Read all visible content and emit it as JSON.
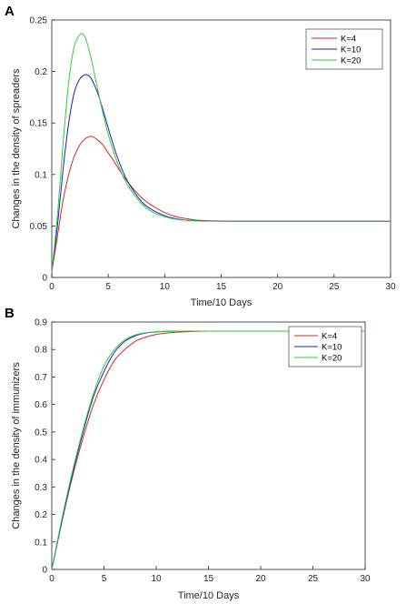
{
  "chart_data": [
    {
      "panel_label": "A",
      "type": "line",
      "title": "",
      "xlabel": "Time/10 Days",
      "ylabel": "Changes in the density of spreaders",
      "xlim": [
        0,
        30
      ],
      "ylim": [
        0,
        0.25
      ],
      "xticks": [
        0,
        5,
        10,
        15,
        20,
        25,
        30
      ],
      "yticks": [
        0,
        0.05,
        0.1,
        0.15,
        0.2,
        0.25
      ],
      "legend_position": "top-right",
      "grid": false,
      "series": [
        {
          "name": "K=4",
          "color": "#d62728",
          "x": [
            0,
            0.5,
            1,
            1.5,
            2,
            2.5,
            3,
            3.5,
            4,
            4.5,
            5,
            5.5,
            6,
            6.5,
            7,
            8,
            9,
            10,
            11,
            12,
            13,
            14,
            15,
            17,
            20,
            25,
            30
          ],
          "y": [
            0.005,
            0.04,
            0.075,
            0.1,
            0.118,
            0.129,
            0.135,
            0.137,
            0.134,
            0.129,
            0.121,
            0.113,
            0.104,
            0.096,
            0.089,
            0.077,
            0.069,
            0.063,
            0.059,
            0.057,
            0.0555,
            0.055,
            0.0548,
            0.0545,
            0.0545,
            0.0545,
            0.0545
          ]
        },
        {
          "name": "K=10",
          "color": "#1f1fbf",
          "x": [
            0,
            0.5,
            1,
            1.5,
            2,
            2.5,
            3,
            3.25,
            3.5,
            4,
            4.5,
            5,
            5.5,
            6,
            6.5,
            7,
            8,
            9,
            10,
            11,
            12,
            13,
            14,
            15,
            17,
            20,
            25,
            30
          ],
          "y": [
            0.005,
            0.05,
            0.105,
            0.15,
            0.18,
            0.193,
            0.197,
            0.196,
            0.193,
            0.181,
            0.164,
            0.145,
            0.127,
            0.111,
            0.098,
            0.088,
            0.073,
            0.065,
            0.06,
            0.057,
            0.0555,
            0.055,
            0.0548,
            0.0546,
            0.0545,
            0.0545,
            0.0545,
            0.0545
          ]
        },
        {
          "name": "K=20",
          "color": "#2ecc40",
          "x": [
            0,
            0.5,
            1,
            1.5,
            2,
            2.5,
            2.75,
            3,
            3.5,
            4,
            4.5,
            5,
            5.5,
            6,
            6.5,
            7,
            8,
            9,
            10,
            11,
            12,
            13,
            14,
            15,
            17,
            20,
            25,
            30
          ],
          "y": [
            0.005,
            0.06,
            0.13,
            0.19,
            0.225,
            0.236,
            0.236,
            0.232,
            0.212,
            0.186,
            0.161,
            0.139,
            0.121,
            0.106,
            0.094,
            0.085,
            0.071,
            0.063,
            0.059,
            0.0565,
            0.0553,
            0.0548,
            0.0546,
            0.0545,
            0.0545,
            0.0545,
            0.0545,
            0.0545
          ]
        }
      ]
    },
    {
      "panel_label": "B",
      "type": "line",
      "title": "",
      "xlabel": "Time/10 Days",
      "ylabel": "Changes in the density of immunizers",
      "xlim": [
        0,
        30
      ],
      "ylim": [
        0,
        0.9
      ],
      "xticks": [
        0,
        5,
        10,
        15,
        20,
        25,
        30
      ],
      "yticks": [
        0,
        0.1,
        0.2,
        0.3,
        0.4,
        0.5,
        0.6,
        0.7,
        0.8,
        0.9
      ],
      "legend_position": "top-right",
      "grid": false,
      "series": [
        {
          "name": "K=4",
          "color": "#d62728",
          "x": [
            0,
            1,
            2,
            3,
            4,
            5,
            6,
            7,
            8,
            9,
            10,
            11,
            12,
            13,
            14,
            15,
            17,
            20,
            25,
            30
          ],
          "y": [
            0,
            0.18,
            0.34,
            0.48,
            0.6,
            0.69,
            0.76,
            0.8,
            0.83,
            0.845,
            0.855,
            0.86,
            0.863,
            0.865,
            0.866,
            0.867,
            0.867,
            0.867,
            0.867,
            0.867
          ]
        },
        {
          "name": "K=10",
          "color": "#1f1fbf",
          "x": [
            0,
            1,
            2,
            3,
            4,
            5,
            6,
            7,
            8,
            9,
            10,
            11,
            12,
            13,
            14,
            15,
            17,
            20,
            25,
            30
          ],
          "y": [
            0,
            0.18,
            0.35,
            0.5,
            0.63,
            0.72,
            0.79,
            0.83,
            0.85,
            0.86,
            0.864,
            0.866,
            0.867,
            0.867,
            0.867,
            0.867,
            0.867,
            0.867,
            0.867,
            0.867
          ]
        },
        {
          "name": "K=20",
          "color": "#2ecc40",
          "x": [
            0,
            1,
            2,
            3,
            4,
            5,
            6,
            7,
            8,
            9,
            10,
            11,
            12,
            13,
            14,
            15,
            17,
            20,
            25,
            30
          ],
          "y": [
            0,
            0.19,
            0.36,
            0.51,
            0.64,
            0.74,
            0.8,
            0.835,
            0.853,
            0.861,
            0.865,
            0.866,
            0.867,
            0.867,
            0.867,
            0.867,
            0.867,
            0.867,
            0.867,
            0.867
          ]
        }
      ]
    }
  ]
}
